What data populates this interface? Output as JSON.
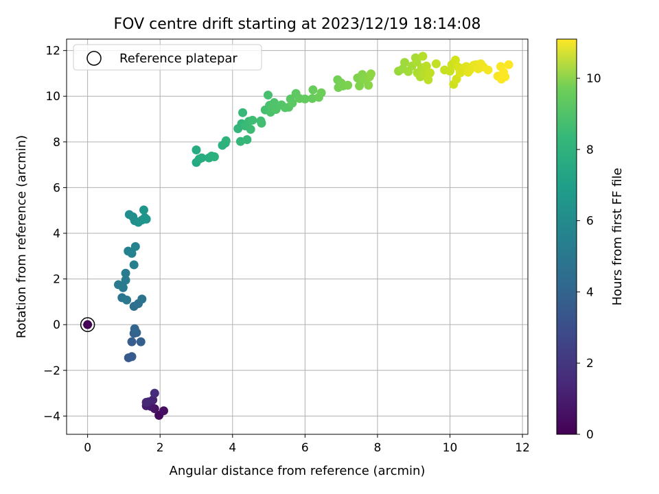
{
  "chart_data": {
    "type": "scatter",
    "title": "FOV centre drift starting at 2023/12/19 18:14:08",
    "xlabel": "Angular distance from reference (arcmin)",
    "ylabel": "Rotation from reference (arcmin)",
    "xlim": [
      -0.58,
      12.15
    ],
    "ylim": [
      -4.8,
      12.5
    ],
    "xticks": [
      0,
      2,
      4,
      6,
      8,
      10,
      12
    ],
    "yticks": [
      -4,
      -2,
      0,
      2,
      4,
      6,
      8,
      10,
      12
    ],
    "xtick_labels": [
      "0",
      "2",
      "4",
      "6",
      "8",
      "10",
      "12"
    ],
    "ytick_labels": [
      "−4",
      "−2",
      "0",
      "2",
      "4",
      "6",
      "8",
      "10",
      "12"
    ],
    "grid": true,
    "legend": {
      "placement": "top-left",
      "entries": [
        "Reference platepar"
      ]
    },
    "reference": {
      "name": "Reference platepar",
      "x": 0,
      "y": 0
    },
    "colorbar": {
      "label": "Hours from first FF file",
      "colormap": "viridis",
      "range": [
        0,
        11.1
      ],
      "ticks": [
        0,
        2,
        4,
        6,
        8,
        10
      ],
      "tick_labels": [
        "0",
        "2",
        "4",
        "6",
        "8",
        "10"
      ]
    },
    "points": [
      {
        "x": 0.0,
        "y": 0.0,
        "c": 0.05
      },
      {
        "x": 1.97,
        "y": -3.97,
        "c": 0.2
      },
      {
        "x": 2.1,
        "y": -3.77,
        "c": 0.3
      },
      {
        "x": 1.85,
        "y": -3.68,
        "c": 0.4
      },
      {
        "x": 1.75,
        "y": -3.58,
        "c": 0.5
      },
      {
        "x": 1.62,
        "y": -3.55,
        "c": 0.6
      },
      {
        "x": 1.68,
        "y": -3.38,
        "c": 0.7
      },
      {
        "x": 1.8,
        "y": -3.3,
        "c": 0.8
      },
      {
        "x": 1.62,
        "y": -3.4,
        "c": 0.9
      },
      {
        "x": 1.85,
        "y": -3.0,
        "c": 1.0
      },
      {
        "x": 1.13,
        "y": -1.45,
        "c": 2.5
      },
      {
        "x": 1.22,
        "y": -1.4,
        "c": 2.6
      },
      {
        "x": 1.22,
        "y": -0.75,
        "c": 2.7
      },
      {
        "x": 1.47,
        "y": -0.75,
        "c": 2.8
      },
      {
        "x": 1.28,
        "y": -0.38,
        "c": 2.9
      },
      {
        "x": 1.35,
        "y": -0.35,
        "c": 3.0
      },
      {
        "x": 1.3,
        "y": -0.18,
        "c": 3.1
      },
      {
        "x": 1.28,
        "y": 0.8,
        "c": 3.5
      },
      {
        "x": 1.4,
        "y": 0.92,
        "c": 3.6
      },
      {
        "x": 1.5,
        "y": 1.12,
        "c": 3.7
      },
      {
        "x": 0.95,
        "y": 1.18,
        "c": 3.8
      },
      {
        "x": 1.08,
        "y": 1.08,
        "c": 3.9
      },
      {
        "x": 0.85,
        "y": 1.75,
        "c": 4.0
      },
      {
        "x": 0.98,
        "y": 1.62,
        "c": 4.05
      },
      {
        "x": 1.05,
        "y": 1.95,
        "c": 4.1
      },
      {
        "x": 1.05,
        "y": 2.25,
        "c": 4.15
      },
      {
        "x": 1.28,
        "y": 2.62,
        "c": 4.3
      },
      {
        "x": 1.12,
        "y": 3.22,
        "c": 4.4
      },
      {
        "x": 1.22,
        "y": 3.12,
        "c": 4.45
      },
      {
        "x": 1.32,
        "y": 3.42,
        "c": 4.5
      },
      {
        "x": 1.15,
        "y": 4.82,
        "c": 5.0
      },
      {
        "x": 1.25,
        "y": 4.72,
        "c": 5.05
      },
      {
        "x": 1.3,
        "y": 4.55,
        "c": 5.1
      },
      {
        "x": 1.4,
        "y": 4.48,
        "c": 5.15
      },
      {
        "x": 1.5,
        "y": 4.58,
        "c": 5.2
      },
      {
        "x": 1.58,
        "y": 4.68,
        "c": 5.25
      },
      {
        "x": 1.62,
        "y": 4.62,
        "c": 5.3
      },
      {
        "x": 1.55,
        "y": 5.02,
        "c": 5.35
      },
      {
        "x": 3.0,
        "y": 7.1,
        "c": 6.4
      },
      {
        "x": 3.0,
        "y": 7.65,
        "c": 6.5
      },
      {
        "x": 3.08,
        "y": 7.25,
        "c": 6.55
      },
      {
        "x": 3.15,
        "y": 7.3,
        "c": 6.6
      },
      {
        "x": 3.35,
        "y": 7.3,
        "c": 6.65
      },
      {
        "x": 3.42,
        "y": 7.38,
        "c": 6.7
      },
      {
        "x": 3.5,
        "y": 7.35,
        "c": 6.75
      },
      {
        "x": 3.72,
        "y": 7.85,
        "c": 6.8
      },
      {
        "x": 3.8,
        "y": 7.95,
        "c": 6.85
      },
      {
        "x": 3.82,
        "y": 8.05,
        "c": 6.9
      },
      {
        "x": 4.15,
        "y": 8.58,
        "c": 7.0
      },
      {
        "x": 4.25,
        "y": 8.8,
        "c": 7.05
      },
      {
        "x": 4.22,
        "y": 8.02,
        "c": 7.1
      },
      {
        "x": 4.4,
        "y": 8.1,
        "c": 7.15
      },
      {
        "x": 4.28,
        "y": 9.28,
        "c": 7.2
      },
      {
        "x": 4.35,
        "y": 8.7,
        "c": 7.25
      },
      {
        "x": 4.45,
        "y": 8.9,
        "c": 7.3
      },
      {
        "x": 4.5,
        "y": 8.55,
        "c": 7.35
      },
      {
        "x": 4.55,
        "y": 8.95,
        "c": 7.4
      },
      {
        "x": 4.78,
        "y": 8.92,
        "c": 7.45
      },
      {
        "x": 4.8,
        "y": 8.82,
        "c": 7.5
      },
      {
        "x": 4.9,
        "y": 9.4,
        "c": 7.55
      },
      {
        "x": 4.98,
        "y": 10.05,
        "c": 7.6
      },
      {
        "x": 5.02,
        "y": 9.6,
        "c": 7.65
      },
      {
        "x": 5.05,
        "y": 9.3,
        "c": 7.7
      },
      {
        "x": 5.1,
        "y": 9.5,
        "c": 7.75
      },
      {
        "x": 5.15,
        "y": 9.72,
        "c": 7.8
      },
      {
        "x": 5.2,
        "y": 9.42,
        "c": 7.85
      },
      {
        "x": 5.35,
        "y": 9.62,
        "c": 7.9
      },
      {
        "x": 5.45,
        "y": 9.5,
        "c": 7.95
      },
      {
        "x": 5.55,
        "y": 9.52,
        "c": 8.0
      },
      {
        "x": 5.6,
        "y": 9.88,
        "c": 8.05
      },
      {
        "x": 5.65,
        "y": 9.7,
        "c": 8.1
      },
      {
        "x": 5.75,
        "y": 10.12,
        "c": 8.15
      },
      {
        "x": 5.85,
        "y": 9.9,
        "c": 8.2
      },
      {
        "x": 6.0,
        "y": 9.88,
        "c": 8.25
      },
      {
        "x": 6.2,
        "y": 9.9,
        "c": 8.3
      },
      {
        "x": 6.22,
        "y": 10.28,
        "c": 8.35
      },
      {
        "x": 6.38,
        "y": 9.95,
        "c": 8.4
      },
      {
        "x": 6.45,
        "y": 10.15,
        "c": 8.45
      },
      {
        "x": 6.9,
        "y": 10.72,
        "c": 8.55
      },
      {
        "x": 6.92,
        "y": 10.38,
        "c": 8.6
      },
      {
        "x": 7.0,
        "y": 10.58,
        "c": 8.65
      },
      {
        "x": 7.05,
        "y": 10.45,
        "c": 8.7
      },
      {
        "x": 7.18,
        "y": 10.48,
        "c": 8.75
      },
      {
        "x": 7.45,
        "y": 10.8,
        "c": 8.8
      },
      {
        "x": 7.5,
        "y": 10.45,
        "c": 8.85
      },
      {
        "x": 7.58,
        "y": 10.95,
        "c": 8.9
      },
      {
        "x": 7.62,
        "y": 10.72,
        "c": 8.95
      },
      {
        "x": 7.75,
        "y": 10.48,
        "c": 9.0
      },
      {
        "x": 7.78,
        "y": 10.85,
        "c": 9.05
      },
      {
        "x": 7.82,
        "y": 10.98,
        "c": 9.1
      },
      {
        "x": 8.58,
        "y": 11.1,
        "c": 9.3
      },
      {
        "x": 8.7,
        "y": 11.2,
        "c": 9.35
      },
      {
        "x": 8.75,
        "y": 11.48,
        "c": 9.4
      },
      {
        "x": 8.85,
        "y": 11.08,
        "c": 9.45
      },
      {
        "x": 8.95,
        "y": 11.32,
        "c": 9.5
      },
      {
        "x": 9.05,
        "y": 11.68,
        "c": 9.55
      },
      {
        "x": 9.08,
        "y": 11.5,
        "c": 9.6
      },
      {
        "x": 9.1,
        "y": 11.02,
        "c": 9.65
      },
      {
        "x": 9.18,
        "y": 10.85,
        "c": 9.7
      },
      {
        "x": 9.22,
        "y": 11.25,
        "c": 9.75
      },
      {
        "x": 9.25,
        "y": 11.75,
        "c": 9.8
      },
      {
        "x": 9.3,
        "y": 10.95,
        "c": 9.85
      },
      {
        "x": 9.35,
        "y": 11.32,
        "c": 9.9
      },
      {
        "x": 9.4,
        "y": 10.72,
        "c": 9.95
      },
      {
        "x": 9.45,
        "y": 11.02,
        "c": 10.0
      },
      {
        "x": 9.62,
        "y": 11.42,
        "c": 10.05
      },
      {
        "x": 9.85,
        "y": 11.15,
        "c": 10.1
      },
      {
        "x": 10.0,
        "y": 11.1,
        "c": 10.15
      },
      {
        "x": 10.05,
        "y": 11.38,
        "c": 10.2
      },
      {
        "x": 10.1,
        "y": 10.52,
        "c": 10.25
      },
      {
        "x": 10.15,
        "y": 11.58,
        "c": 10.3
      },
      {
        "x": 10.18,
        "y": 10.75,
        "c": 10.35
      },
      {
        "x": 10.22,
        "y": 11.28,
        "c": 10.4
      },
      {
        "x": 10.28,
        "y": 11.02,
        "c": 10.45
      },
      {
        "x": 10.35,
        "y": 11.22,
        "c": 10.5
      },
      {
        "x": 10.45,
        "y": 11.3,
        "c": 10.55
      },
      {
        "x": 10.5,
        "y": 11.05,
        "c": 10.6
      },
      {
        "x": 10.55,
        "y": 11.15,
        "c": 10.65
      },
      {
        "x": 10.65,
        "y": 11.35,
        "c": 10.7
      },
      {
        "x": 10.72,
        "y": 11.38,
        "c": 10.75
      },
      {
        "x": 10.78,
        "y": 11.2,
        "c": 10.8
      },
      {
        "x": 10.85,
        "y": 11.42,
        "c": 10.85
      },
      {
        "x": 10.92,
        "y": 11.28,
        "c": 10.9
      },
      {
        "x": 11.05,
        "y": 11.15,
        "c": 10.95
      },
      {
        "x": 11.32,
        "y": 10.88,
        "c": 11.0
      },
      {
        "x": 11.4,
        "y": 11.3,
        "c": 11.02
      },
      {
        "x": 11.42,
        "y": 10.75,
        "c": 11.04
      },
      {
        "x": 11.48,
        "y": 11.05,
        "c": 11.06
      },
      {
        "x": 11.52,
        "y": 10.85,
        "c": 11.08
      },
      {
        "x": 11.62,
        "y": 11.38,
        "c": 11.1
      }
    ]
  }
}
